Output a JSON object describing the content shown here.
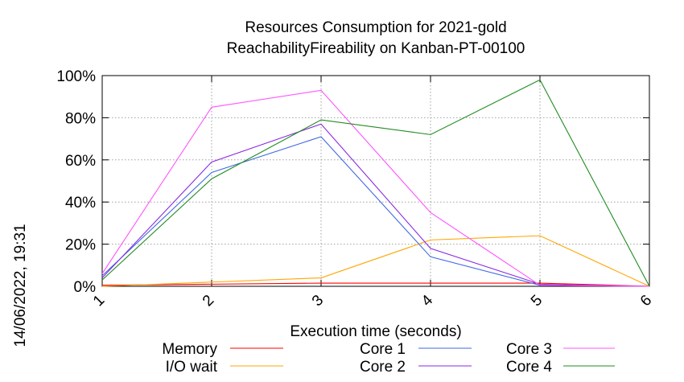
{
  "chart_data": {
    "type": "line",
    "title_line1": "Resources Consumption for 2021-gold",
    "title_line2": "ReachabilityFireability on Kanban-PT-00100",
    "xlabel": "Execution time (seconds)",
    "ylabel": "",
    "side_label": "14/06/2022, 19:31",
    "x": [
      1,
      2,
      3,
      4,
      5,
      6
    ],
    "xlim": [
      1,
      6
    ],
    "ylim": [
      0,
      100
    ],
    "x_ticks": [
      "1",
      "2",
      "3",
      "4",
      "5",
      "6"
    ],
    "y_ticks": [
      {
        "value": 0,
        "label": "0%"
      },
      {
        "value": 20,
        "label": "20%"
      },
      {
        "value": 40,
        "label": "40%"
      },
      {
        "value": 60,
        "label": "60%"
      },
      {
        "value": 80,
        "label": "80%"
      },
      {
        "value": 100,
        "label": "100%"
      }
    ],
    "grid": true,
    "legend_position": "bottom",
    "series": [
      {
        "name": "Memory",
        "color": "#ff0000",
        "values": [
          0.5,
          1,
          1.5,
          1.5,
          1.5,
          0
        ]
      },
      {
        "name": "I/O wait",
        "color": "#ffa500",
        "values": [
          0,
          2,
          4,
          22,
          24,
          0
        ]
      },
      {
        "name": "Core 1",
        "color": "#4169e1",
        "values": [
          5,
          54,
          71,
          14,
          0.5,
          0
        ]
      },
      {
        "name": "Core 2",
        "color": "#8a2be2",
        "values": [
          4,
          59,
          77,
          18,
          1,
          0
        ]
      },
      {
        "name": "Core 3",
        "color": "#ff55ff",
        "values": [
          6,
          85,
          93,
          35,
          0.5,
          0
        ]
      },
      {
        "name": "Core 4",
        "color": "#228b22",
        "values": [
          3,
          51,
          79,
          72,
          98,
          0
        ]
      }
    ]
  }
}
